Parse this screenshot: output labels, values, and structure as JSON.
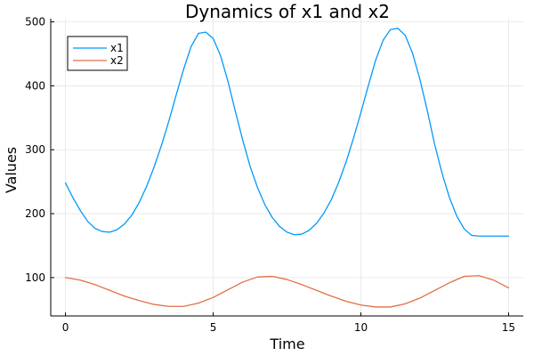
{
  "chart_data": {
    "type": "line",
    "title": "Dynamics of x1 and x2",
    "xlabel": "Time",
    "ylabel": "Values",
    "xlim": [
      -0.5,
      15.5
    ],
    "ylim": [
      40,
      505
    ],
    "xticks": [
      0,
      5,
      10,
      15
    ],
    "yticks": [
      100,
      200,
      300,
      400,
      500
    ],
    "grid": true,
    "legend_position": "top-left",
    "series": [
      {
        "name": "x1",
        "color": "#009AFA",
        "x": [
          0,
          0.25,
          0.5,
          0.75,
          1,
          1.25,
          1.5,
          1.75,
          2,
          2.25,
          2.5,
          2.75,
          3,
          3.25,
          3.5,
          3.75,
          4,
          4.25,
          4.5,
          4.75,
          5,
          5.25,
          5.5,
          5.75,
          6,
          6.25,
          6.5,
          6.75,
          7,
          7.25,
          7.5,
          7.75,
          8,
          8.25,
          8.5,
          8.75,
          9,
          9.25,
          9.5,
          9.75,
          10,
          10.25,
          10.5,
          10.75,
          11,
          11.25,
          11.5,
          11.75,
          12,
          12.25,
          12.5,
          12.75,
          13,
          13.25,
          13.5,
          13.75,
          14,
          14.25,
          14.5,
          14.75,
          15
        ],
        "values": [
          248,
          225,
          205,
          188,
          177,
          172,
          171,
          175,
          184,
          198,
          218,
          243,
          273,
          307,
          345,
          386,
          426,
          461,
          482,
          484,
          474,
          447,
          407,
          360,
          315,
          274,
          241,
          214,
          194,
          180,
          171,
          167,
          168,
          174,
          185,
          201,
          222,
          249,
          281,
          318,
          358,
          400,
          440,
          471,
          488,
          490,
          479,
          451,
          410,
          361,
          308,
          263,
          225,
          196,
          176,
          166,
          165,
          165,
          165,
          165,
          165
        ]
      },
      {
        "name": "x2",
        "color": "#E26F46",
        "x": [
          0,
          0.5,
          1,
          1.5,
          2,
          2.5,
          3,
          3.5,
          4,
          4.5,
          5,
          5.5,
          6,
          6.5,
          7,
          7.5,
          8,
          8.5,
          9,
          9.5,
          10,
          10.5,
          11,
          11.5,
          12,
          12.5,
          13,
          13.5,
          14,
          14.5,
          15
        ],
        "values": [
          100,
          96,
          89,
          80,
          71,
          64,
          58,
          55,
          55,
          60,
          69,
          81,
          93,
          101,
          102,
          97,
          89,
          80,
          71,
          63,
          57,
          54,
          54,
          59,
          68,
          80,
          92,
          102,
          103,
          96,
          84
        ]
      }
    ]
  }
}
